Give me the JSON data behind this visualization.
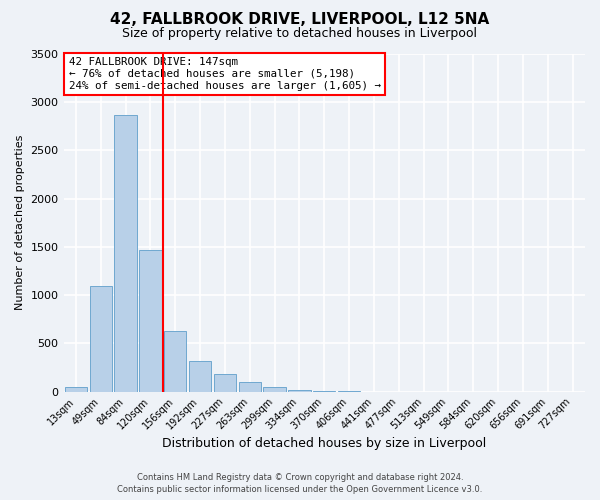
{
  "title": "42, FALLBROOK DRIVE, LIVERPOOL, L12 5NA",
  "subtitle": "Size of property relative to detached houses in Liverpool",
  "xlabel": "Distribution of detached houses by size in Liverpool",
  "ylabel": "Number of detached properties",
  "bar_labels": [
    "13sqm",
    "49sqm",
    "84sqm",
    "120sqm",
    "156sqm",
    "192sqm",
    "227sqm",
    "263sqm",
    "299sqm",
    "334sqm",
    "370sqm",
    "406sqm",
    "441sqm",
    "477sqm",
    "513sqm",
    "549sqm",
    "584sqm",
    "620sqm",
    "656sqm",
    "691sqm",
    "727sqm"
  ],
  "bar_values": [
    50,
    1090,
    2870,
    1470,
    630,
    320,
    185,
    95,
    50,
    20,
    5,
    1,
    0,
    0,
    0,
    0,
    0,
    0,
    0,
    0,
    0
  ],
  "bar_color": "#b8d0e8",
  "bar_edge_color": "#6fa8d0",
  "vline_color": "red",
  "annotation_text": "42 FALLBROOK DRIVE: 147sqm\n← 76% of detached houses are smaller (5,198)\n24% of semi-detached houses are larger (1,605) →",
  "annotation_box_color": "white",
  "annotation_box_edge_color": "red",
  "ylim": [
    0,
    3500
  ],
  "yticks": [
    0,
    500,
    1000,
    1500,
    2000,
    2500,
    3000,
    3500
  ],
  "footer1": "Contains HM Land Registry data © Crown copyright and database right 2024.",
  "footer2": "Contains public sector information licensed under the Open Government Licence v3.0.",
  "bg_color": "#eef2f7",
  "grid_color": "white"
}
